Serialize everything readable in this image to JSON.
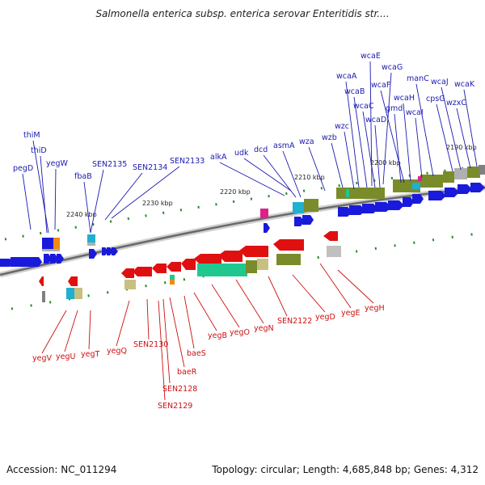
{
  "header": {
    "title": "Salmonella enterica subsp. enterica serovar Enteritidis str...."
  },
  "footer": {
    "accession": "Accession: NC_011294",
    "summary": "Topology: circular; Length: 4,685,848 bp; Genes: 4,312"
  },
  "colors": {
    "forward_strand": "#1a1adc",
    "reverse_strand": "#e01010",
    "label_blue": "#1a1ab0",
    "label_red": "#cc1010",
    "olive": "#7a8c2a",
    "khaki": "#c8c080",
    "cyan": "#20b0d0",
    "teal_green": "#20c890",
    "orange": "#f08a10",
    "magenta": "#e0208a",
    "grey": "#b0b0b0",
    "tick_green": "#2a8a2a"
  },
  "scale_labels": [
    "2190 kbp",
    "2200 kbp",
    "2210 kbp",
    "2220 kbp",
    "2230 kbp",
    "2240 kbp"
  ],
  "top_labels": [
    {
      "name": "wcaE"
    },
    {
      "name": "wcaG"
    },
    {
      "name": "wcaA"
    },
    {
      "name": "manC"
    },
    {
      "name": "wcaB"
    },
    {
      "name": "wcaF"
    },
    {
      "name": "wcaJ"
    },
    {
      "name": "wcaK"
    },
    {
      "name": "wcaH"
    },
    {
      "name": "cpsG"
    },
    {
      "name": "wcaC"
    },
    {
      "name": "gmd"
    },
    {
      "name": "wcaI"
    },
    {
      "name": "wzxC"
    },
    {
      "name": "wcaD"
    },
    {
      "name": "wzc"
    },
    {
      "name": "thiM"
    },
    {
      "name": "wza"
    },
    {
      "name": "wzb"
    },
    {
      "name": "thiD"
    },
    {
      "name": "asmA"
    },
    {
      "name": "dcd"
    },
    {
      "name": "udk"
    },
    {
      "name": "alkA"
    },
    {
      "name": "pegD"
    },
    {
      "name": "yegW"
    },
    {
      "name": "SEN2135"
    },
    {
      "name": "SEN2134"
    },
    {
      "name": "SEN2133"
    },
    {
      "name": "fbaB"
    }
  ],
  "bottom_labels": [
    {
      "name": "yegH"
    },
    {
      "name": "yegE"
    },
    {
      "name": "yegD"
    },
    {
      "name": "SEN2122"
    },
    {
      "name": "yegN"
    },
    {
      "name": "yegO"
    },
    {
      "name": "yegB"
    },
    {
      "name": "yegV"
    },
    {
      "name": "yegU"
    },
    {
      "name": "yegT"
    },
    {
      "name": "yegQ"
    },
    {
      "name": "baeS"
    },
    {
      "name": "SEN2130"
    },
    {
      "name": "baeR"
    },
    {
      "name": "SEN2128"
    },
    {
      "name": "SEN2129"
    }
  ]
}
